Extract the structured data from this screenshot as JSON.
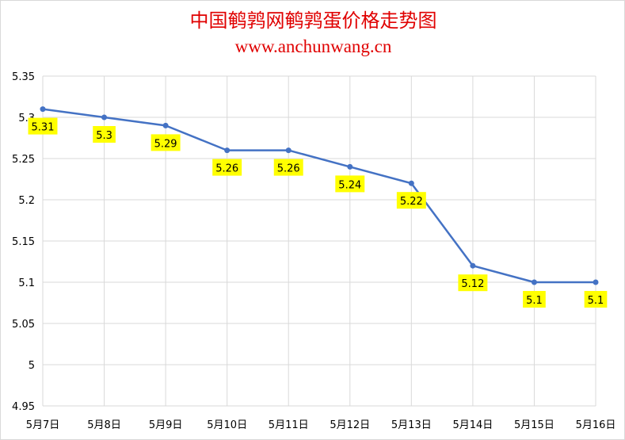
{
  "chart_data": {
    "type": "line",
    "title": "中国鹌鹑网鹌鹑蛋价格走势图",
    "subtitle": "www.anchunwang.cn",
    "categories": [
      "5月7日",
      "5月8日",
      "5月9日",
      "5月10日",
      "5月11日",
      "5月12日",
      "5月13日",
      "5月14日",
      "5月15日",
      "5月16日"
    ],
    "values": [
      5.31,
      5.3,
      5.29,
      5.26,
      5.26,
      5.24,
      5.22,
      5.12,
      5.1,
      5.1
    ],
    "data_labels": [
      "5.31",
      "5.3",
      "5.29",
      "5.26",
      "5.26",
      "5.24",
      "5.22",
      "5.12",
      "5.1",
      "5.1"
    ],
    "yticks": [
      "5.35",
      "5.3",
      "5.25",
      "5.2",
      "5.15",
      "5.1",
      "5.05",
      "5",
      "4.95"
    ],
    "ylim": [
      4.95,
      5.35
    ],
    "grid": true,
    "legend": "none",
    "colors": {
      "line": "#4472c4",
      "label_bg": "#ffff00",
      "grid": "#d9d9d9",
      "title": "#e00000"
    }
  }
}
